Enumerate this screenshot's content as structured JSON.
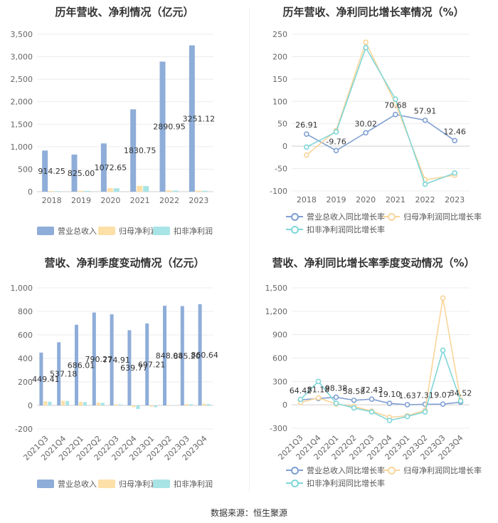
{
  "source": "数据来源：恒生聚源",
  "colors": {
    "revenue": "#8eadd8",
    "net_profit": "#fde0a8",
    "deducted": "#a8e4e6",
    "rev_growth": "#7f9fd2",
    "np_growth": "#f9d59a",
    "ded_growth": "#80d6d8"
  },
  "chart_data": [
    {
      "type": "bar",
      "title": "历年营收、净利情况（亿元）",
      "categories": [
        "2018",
        "2019",
        "2020",
        "2021",
        "2022",
        "2023"
      ],
      "ylim": [
        0,
        3500
      ],
      "yticks": [
        "0",
        "500",
        "1,000",
        "1,500",
        "2,000",
        "2,500",
        "3,000",
        "3,500"
      ],
      "series": [
        {
          "name": "营业总收入",
          "values": [
            914.25,
            825.0,
            1072.65,
            1830.75,
            2890.95,
            3251.12
          ],
          "labels": [
            "914.25",
            "825.00",
            "1072.65",
            "1830.75",
            "2890.95",
            "3251.12"
          ]
        },
        {
          "name": "归母净利润",
          "values": [
            15,
            20,
            80,
            130,
            30,
            25
          ]
        },
        {
          "name": "扣非净利润",
          "values": [
            12,
            18,
            75,
            125,
            25,
            20
          ]
        }
      ]
    },
    {
      "type": "line",
      "title": "历年营收、净利同比增长率情况（%）",
      "categories": [
        "2018",
        "2019",
        "2020",
        "2021",
        "2022",
        "2023"
      ],
      "ylim": [
        -100,
        250
      ],
      "yticks": [
        "-100",
        "-50",
        "0",
        "50",
        "100",
        "150",
        "200",
        "250"
      ],
      "series": [
        {
          "name": "营业总收入同比增长率",
          "values": [
            26.91,
            -9.76,
            30.02,
            70.68,
            57.91,
            12.46
          ],
          "labels": [
            "26.91",
            "-9.76",
            "30.02",
            "70.68",
            "57.91",
            "12.46"
          ]
        },
        {
          "name": "归母净利润同比增长率",
          "values": [
            -20,
            35,
            232,
            95,
            -75,
            -65
          ]
        },
        {
          "name": "扣非净利润同比增长率",
          "values": [
            -2,
            32,
            220,
            105,
            -85,
            -60
          ]
        }
      ]
    },
    {
      "type": "bar",
      "title": "营收、净利季度变动情况（亿元）",
      "categories": [
        "2021Q3",
        "2021Q4",
        "2022Q1",
        "2022Q2",
        "2022Q3",
        "2022Q4",
        "2023Q1",
        "2023Q2",
        "2023Q3",
        "2023Q4"
      ],
      "ylim": [
        -200,
        1000
      ],
      "yticks": [
        "-200",
        "0",
        "200",
        "400",
        "600",
        "800",
        "1,000"
      ],
      "series": [
        {
          "name": "营业总收入",
          "values": [
            449.41,
            537.18,
            686.01,
            790.27,
            774.91,
            639.77,
            697.21,
            848.08,
            845.2,
            860.64
          ],
          "labels": [
            "449.41",
            "537.18",
            "686.01",
            "790.27",
            "774.91",
            "639.77",
            "697.21",
            "848.08",
            "845.20",
            "860.64"
          ]
        },
        {
          "name": "归母净利润",
          "values": [
            35,
            40,
            30,
            25,
            10,
            -15,
            -10,
            5,
            12,
            15
          ]
        },
        {
          "name": "扣非净利润",
          "values": [
            32,
            38,
            28,
            22,
            8,
            -30,
            -15,
            3,
            10,
            12
          ]
        }
      ]
    },
    {
      "type": "line",
      "title": "营收、净利同比增长率季度变动情况（%）",
      "categories": [
        "2021Q3",
        "2021Q4",
        "2022Q1",
        "2022Q2",
        "2022Q3",
        "2022Q4",
        "2023Q1",
        "2023Q2",
        "2023Q3",
        "2023Q4"
      ],
      "ylim": [
        -300,
        1500
      ],
      "yticks": [
        "-300",
        "0",
        "300",
        "600",
        "900",
        "1,200",
        "1,500"
      ],
      "series": [
        {
          "name": "营业总收入同比增长率",
          "values": [
            64.42,
            81.18,
            98.38,
            58.58,
            72.43,
            19.1,
            1.63,
            7.31,
            9.07,
            34.52
          ],
          "labels": [
            "64.42",
            "81.18",
            "98.38",
            "58.58",
            "72.43",
            "19.10",
            "1.63",
            "7.31",
            "9.07",
            "34.52"
          ]
        },
        {
          "name": "归母净利润同比增长率",
          "values": [
            30,
            90,
            10,
            -20,
            -80,
            -160,
            -140,
            -70,
            1370,
            60
          ]
        },
        {
          "name": "扣非净利润同比增长率",
          "values": [
            70,
            300,
            20,
            -40,
            -90,
            -200,
            -150,
            -90,
            700,
            50
          ]
        }
      ]
    }
  ]
}
